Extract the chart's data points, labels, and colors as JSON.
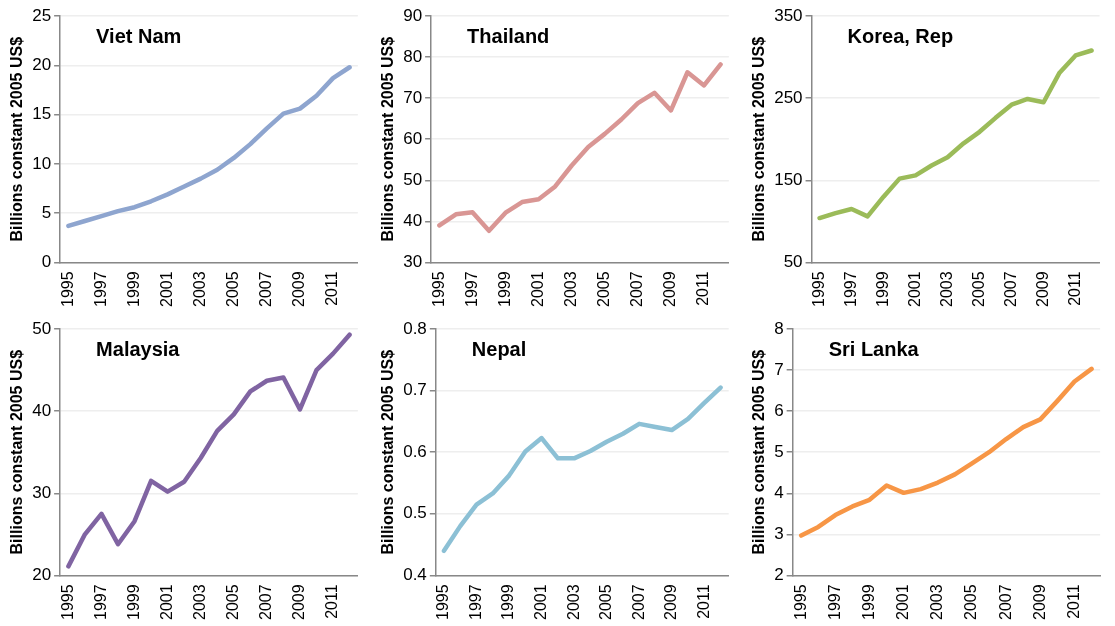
{
  "chart_data": [
    {
      "type": "line",
      "title": "Viet Nam",
      "ylabel": "Billions constant 2005 US$",
      "categories": [
        "1995",
        null,
        "1997",
        null,
        "1999",
        null,
        "2001",
        null,
        "2003",
        null,
        "2005",
        null,
        "2007",
        null,
        "2009",
        null,
        "2011",
        null
      ],
      "series": [
        {
          "color": "#8ea5cf",
          "values": [
            3.7,
            4.2,
            4.7,
            5.2,
            5.6,
            6.2,
            6.9,
            7.7,
            8.5,
            9.4,
            10.6,
            12.0,
            13.6,
            15.1,
            15.6,
            16.9,
            18.7,
            19.8
          ]
        }
      ],
      "ylim": [
        0,
        25
      ],
      "yticks": [
        0,
        5,
        10,
        15,
        20,
        25
      ],
      "grid": "y",
      "legend": false
    },
    {
      "type": "line",
      "title": "Thailand",
      "ylabel": "Billions constant 2005 US$",
      "categories": [
        "1995",
        null,
        "1997",
        null,
        "1999",
        null,
        "2001",
        null,
        "2003",
        null,
        "2005",
        null,
        "2007",
        null,
        "2009",
        null,
        "2011",
        null
      ],
      "series": [
        {
          "color": "#d99694",
          "values": [
            39,
            41.7,
            42.2,
            37.7,
            42.1,
            44.7,
            45.4,
            48.5,
            53.6,
            58.1,
            61.3,
            64.8,
            68.8,
            71.3,
            67.0,
            76.3,
            73.1,
            78.2
          ]
        }
      ],
      "ylim": [
        30,
        90
      ],
      "yticks": [
        30,
        40,
        50,
        60,
        70,
        80,
        90
      ],
      "grid": "y",
      "legend": false
    },
    {
      "type": "line",
      "title": "Korea, Rep",
      "ylabel": "Billions constant 2005 US$",
      "categories": [
        "1995",
        null,
        "1997",
        null,
        "1999",
        null,
        "2001",
        null,
        "2003",
        null,
        "2005",
        null,
        "2007",
        null,
        "2009",
        null,
        "2011",
        null
      ],
      "series": [
        {
          "color": "#9bbb59",
          "values": [
            104,
            110,
            115,
            106,
            130,
            152,
            156,
            168,
            178,
            195,
            209,
            226,
            242,
            249,
            245,
            281,
            302,
            308
          ]
        }
      ],
      "ylim": [
        50,
        350
      ],
      "yticks": [
        50,
        150,
        250,
        350
      ],
      "grid": "y",
      "legend": false
    },
    {
      "type": "line",
      "title": "Malaysia",
      "ylabel": "Billions constant 2005 US$",
      "categories": [
        "1995",
        null,
        "1997",
        null,
        "1999",
        null,
        "2001",
        null,
        "2003",
        null,
        "2005",
        null,
        "2007",
        null,
        "2009",
        null,
        "2011",
        null
      ],
      "series": [
        {
          "color": "#8064a2",
          "values": [
            21.1,
            25.0,
            27.5,
            23.8,
            26.6,
            31.5,
            30.2,
            31.4,
            34.3,
            37.6,
            39.6,
            42.4,
            43.7,
            44.1,
            40.2,
            45.0,
            47.0,
            49.3
          ]
        }
      ],
      "ylim": [
        20,
        50
      ],
      "yticks": [
        20,
        30,
        40,
        50
      ],
      "grid": "y",
      "legend": false
    },
    {
      "type": "line",
      "title": "Nepal",
      "ylabel": "Billions constant 2005 US$",
      "categories": [
        "1995",
        null,
        "1997",
        null,
        "1999",
        null,
        "2001",
        null,
        "2003",
        null,
        "2005",
        null,
        "2007",
        null,
        "2009",
        null,
        "2011",
        null
      ],
      "series": [
        {
          "color": "#8cc0d5",
          "values": [
            0.44,
            0.48,
            0.515,
            0.533,
            0.562,
            0.601,
            0.623,
            0.59,
            0.59,
            0.602,
            0.617,
            0.63,
            0.646,
            0.641,
            0.636,
            0.654,
            0.68,
            0.705
          ]
        }
      ],
      "ylim": [
        0.4,
        0.8
      ],
      "yticks": [
        0.4,
        0.5,
        0.6,
        0.7,
        0.8
      ],
      "grid": "y",
      "legend": false
    },
    {
      "type": "line",
      "title": "Sri Lanka",
      "ylabel": "Billions constant 2005 US$",
      "categories": [
        "1995",
        null,
        "1997",
        null,
        "1999",
        null,
        "2001",
        null,
        "2003",
        null,
        "2005",
        null,
        "2007",
        null,
        "2009",
        null,
        "2011",
        null
      ],
      "series": [
        {
          "color": "#f79646",
          "values": [
            2.97,
            3.18,
            3.47,
            3.68,
            3.84,
            4.19,
            4.01,
            4.1,
            4.26,
            4.46,
            4.73,
            5.0,
            5.32,
            5.61,
            5.8,
            6.25,
            6.72,
            7.03
          ]
        }
      ],
      "ylim": [
        2,
        8
      ],
      "yticks": [
        2,
        3,
        4,
        5,
        6,
        7,
        8
      ],
      "grid": "y",
      "legend": false
    }
  ]
}
